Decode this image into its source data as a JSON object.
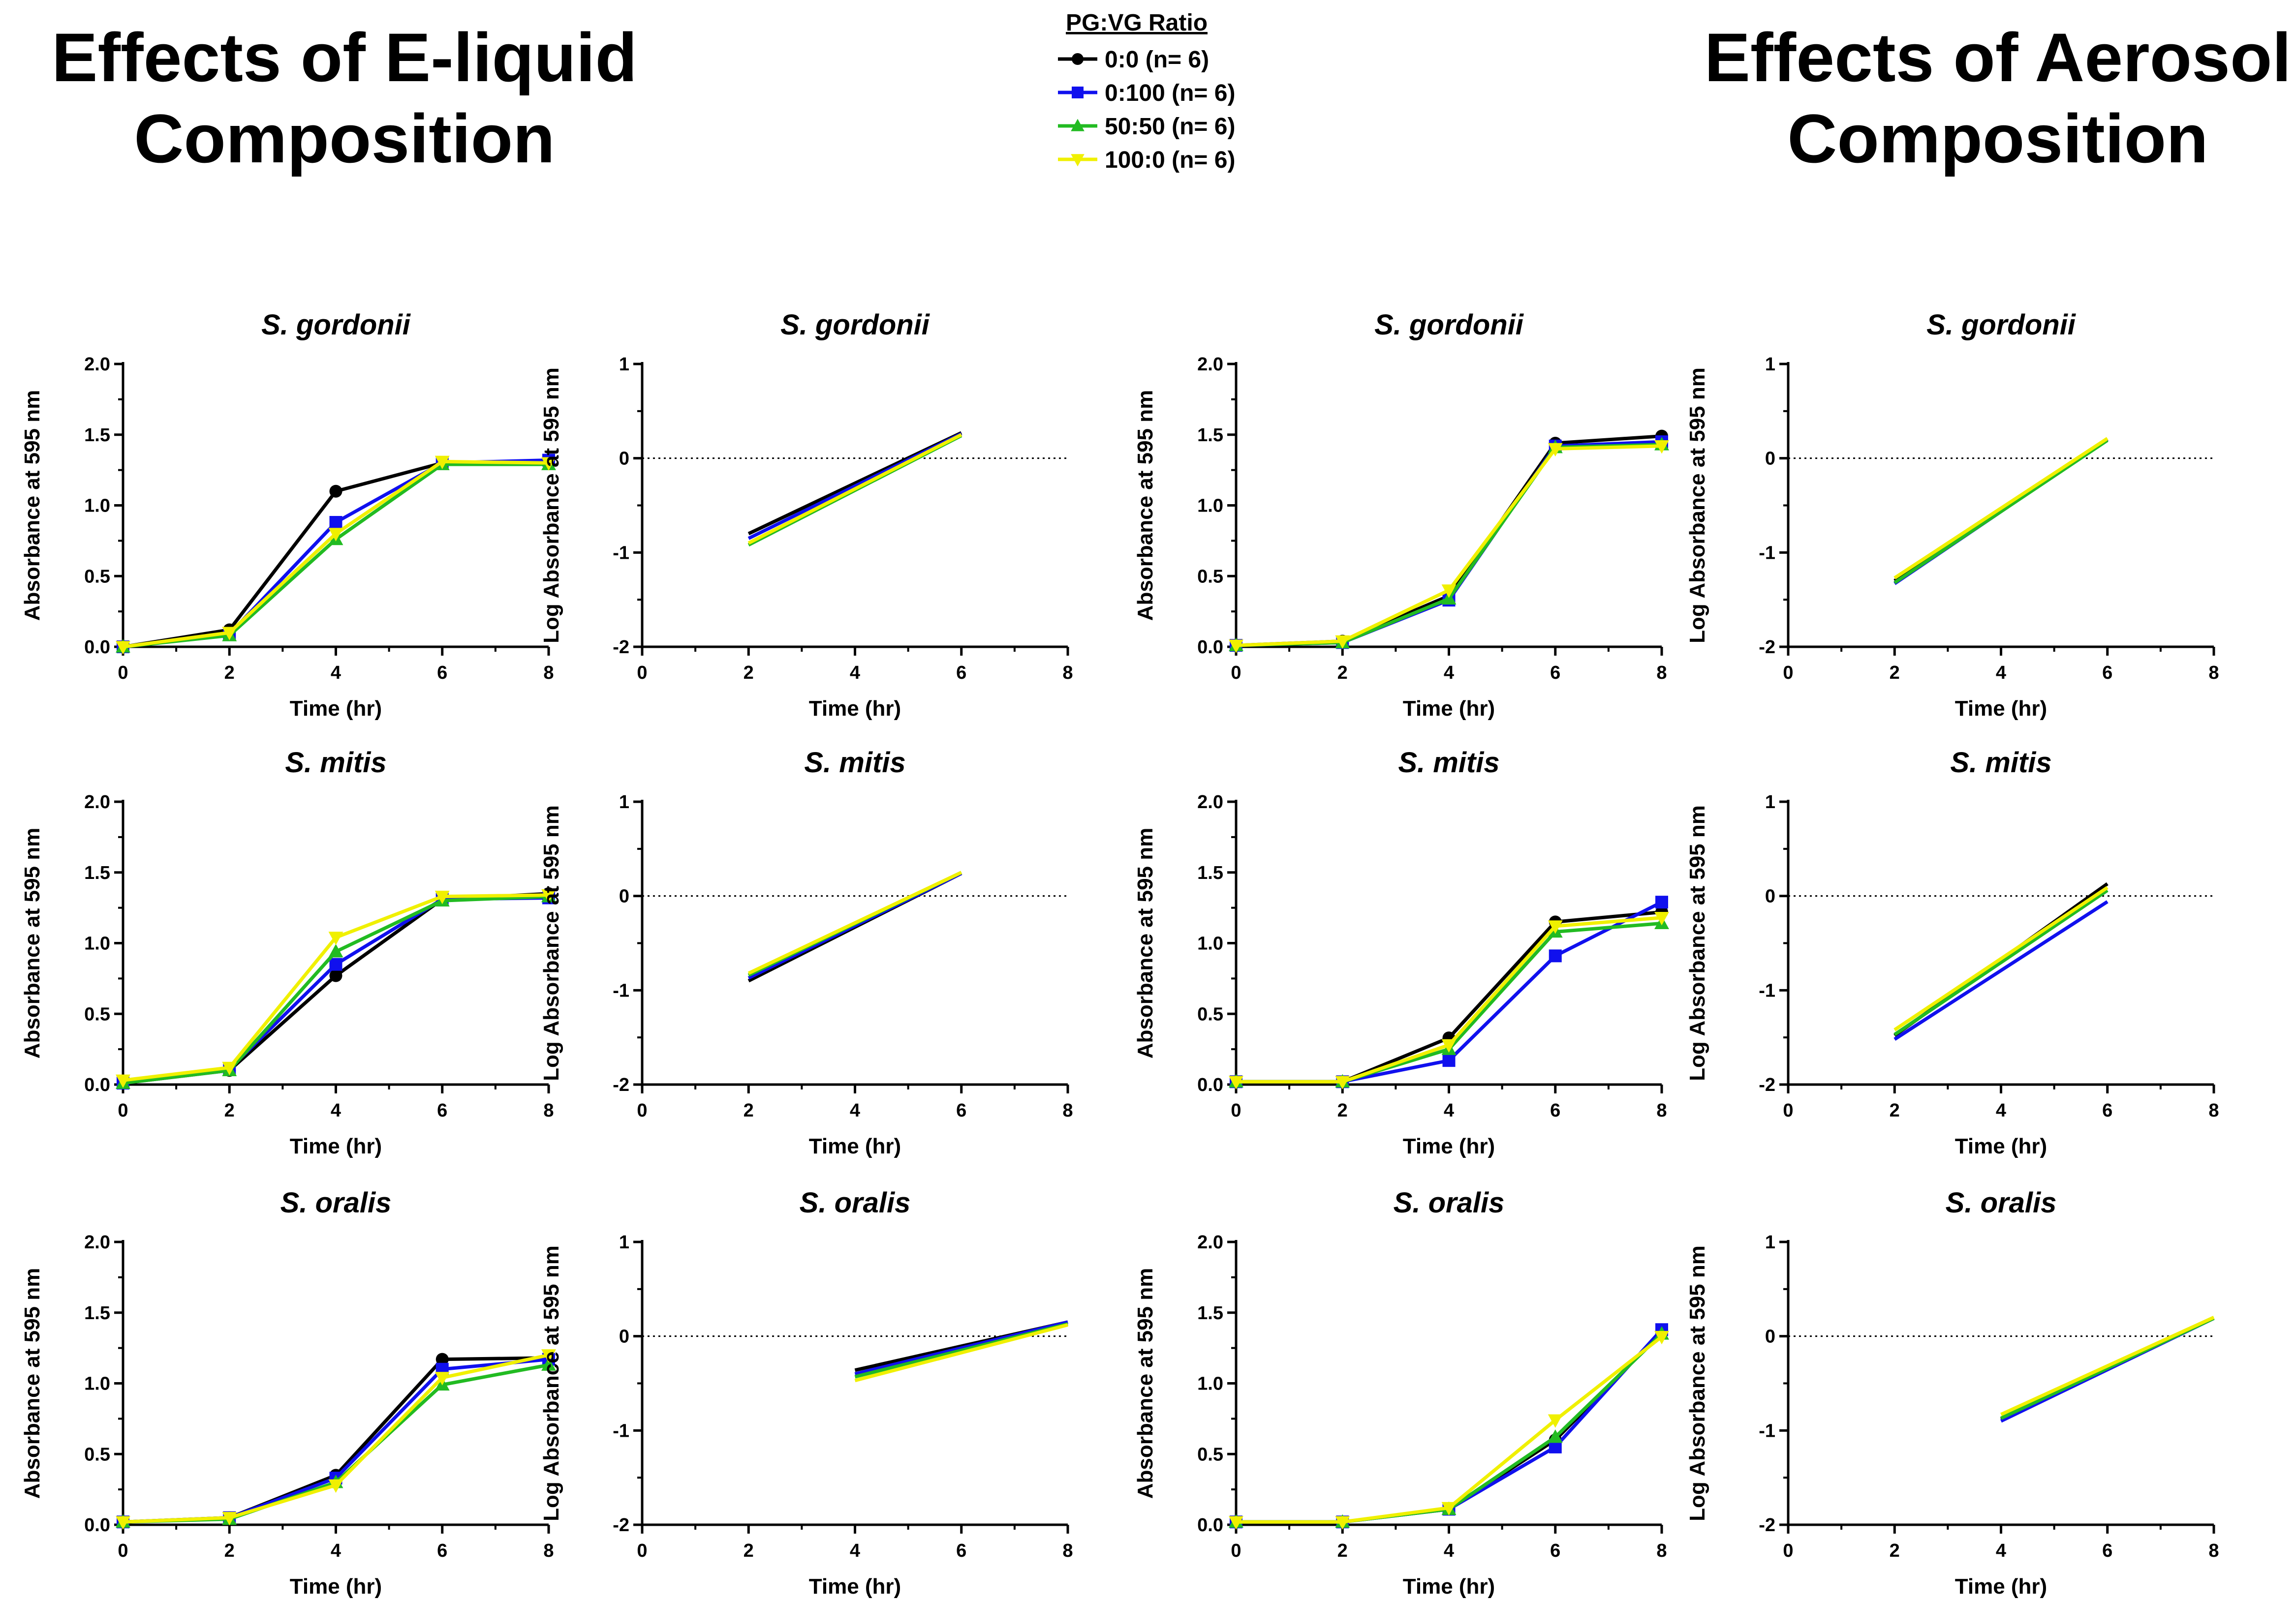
{
  "header": {
    "left_title": [
      "Effects of E-liquid",
      "Composition"
    ],
    "right_title": [
      "Effects of Aerosol",
      "Composition"
    ]
  },
  "legend": {
    "title": "PG:VG Ratio",
    "entries": [
      {
        "label": "0:0 (n= 6)",
        "color": "#000000",
        "marker": "circle"
      },
      {
        "label": "0:100 (n= 6)",
        "color": "#1010ee",
        "marker": "square"
      },
      {
        "label": "50:50 (n= 6)",
        "color": "#22bb22",
        "marker": "triangle-up"
      },
      {
        "label": "100:0 (n= 6)",
        "color": "#f0f000",
        "marker": "triangle-down"
      }
    ]
  },
  "chart_data": [
    {
      "type": "line",
      "group": "E-liquid",
      "title": "S. gordonii",
      "xlabel": "Time (hr)",
      "ylabel": "Absorbance at 595 nm",
      "xlim": [
        0,
        8
      ],
      "ylim": [
        0,
        2
      ],
      "xticks": [
        "0",
        "2",
        "4",
        "6",
        "8"
      ],
      "yticks": [
        "0.0",
        "0.5",
        "1.0",
        "1.5",
        "2.0"
      ],
      "x": [
        0,
        2,
        4,
        6,
        8
      ],
      "series": [
        {
          "name": "0:0 (n= 6)",
          "values": [
            0.0,
            0.12,
            1.1,
            1.3,
            1.3
          ]
        },
        {
          "name": "0:100 (n= 6)",
          "values": [
            0.0,
            0.09,
            0.88,
            1.3,
            1.32
          ]
        },
        {
          "name": "50:50 (n= 6)",
          "values": [
            0.0,
            0.08,
            0.76,
            1.29,
            1.29
          ]
        },
        {
          "name": "100:0 (n= 6)",
          "values": [
            0.0,
            0.1,
            0.8,
            1.31,
            1.3
          ]
        }
      ]
    },
    {
      "type": "line",
      "group": "E-liquid",
      "title": "S. gordonii",
      "xlabel": "Time (hr)",
      "ylabel": "Log Absorbance at 595 nm",
      "xlim": [
        0,
        8
      ],
      "ylim": [
        -2,
        1
      ],
      "xticks": [
        "0",
        "2",
        "4",
        "6",
        "8"
      ],
      "yticks": [
        "-2",
        "-1",
        "0",
        "1"
      ],
      "zero_line": true,
      "series": [
        {
          "name": "0:0 (n= 6)",
          "x": [
            2,
            6
          ],
          "values": [
            -0.8,
            0.27
          ]
        },
        {
          "name": "0:100 (n= 6)",
          "x": [
            2,
            6
          ],
          "values": [
            -0.85,
            0.26
          ]
        },
        {
          "name": "50:50 (n= 6)",
          "x": [
            2,
            6
          ],
          "values": [
            -0.92,
            0.24
          ]
        },
        {
          "name": "100:0 (n= 6)",
          "x": [
            2,
            6
          ],
          "values": [
            -0.9,
            0.25
          ]
        }
      ]
    },
    {
      "type": "line",
      "group": "Aerosol",
      "title": "S. gordonii",
      "xlabel": "Time (hr)",
      "ylabel": "Absorbance at 595 nm",
      "xlim": [
        0,
        8
      ],
      "ylim": [
        0,
        2
      ],
      "xticks": [
        "0",
        "2",
        "4",
        "6",
        "8"
      ],
      "yticks": [
        "0.0",
        "0.5",
        "1.0",
        "1.5",
        "2.0"
      ],
      "x": [
        0,
        2,
        4,
        6,
        8
      ],
      "series": [
        {
          "name": "0:0 (n= 6)",
          "values": [
            0.01,
            0.04,
            0.36,
            1.44,
            1.49
          ]
        },
        {
          "name": "0:100 (n= 6)",
          "values": [
            0.01,
            0.03,
            0.33,
            1.42,
            1.45
          ]
        },
        {
          "name": "50:50 (n= 6)",
          "values": [
            0.01,
            0.03,
            0.34,
            1.41,
            1.43
          ]
        },
        {
          "name": "100:0 (n= 6)",
          "values": [
            0.01,
            0.04,
            0.4,
            1.4,
            1.42
          ]
        }
      ]
    },
    {
      "type": "line",
      "group": "Aerosol",
      "title": "S. gordonii",
      "xlabel": "Time (hr)",
      "ylabel": "Log Absorbance at 595 nm",
      "xlim": [
        0,
        8
      ],
      "ylim": [
        -2,
        1
      ],
      "xticks": [
        "0",
        "2",
        "4",
        "6",
        "8"
      ],
      "yticks": [
        "-2",
        "-1",
        "0",
        "1"
      ],
      "zero_line": true,
      "series": [
        {
          "name": "0:0 (n= 6)",
          "x": [
            2,
            6
          ],
          "values": [
            -1.3,
            0.2
          ]
        },
        {
          "name": "0:100 (n= 6)",
          "x": [
            2,
            6
          ],
          "values": [
            -1.33,
            0.2
          ]
        },
        {
          "name": "50:50 (n= 6)",
          "x": [
            2,
            6
          ],
          "values": [
            -1.32,
            0.19
          ]
        },
        {
          "name": "100:0 (n= 6)",
          "x": [
            2,
            6
          ],
          "values": [
            -1.27,
            0.21
          ]
        }
      ]
    },
    {
      "type": "line",
      "group": "E-liquid",
      "title": "S. mitis",
      "xlabel": "Time (hr)",
      "ylabel": "Absorbance at 595 nm",
      "xlim": [
        0,
        8
      ],
      "ylim": [
        0,
        2
      ],
      "xticks": [
        "0",
        "2",
        "4",
        "6",
        "8"
      ],
      "yticks": [
        "0.0",
        "0.5",
        "1.0",
        "1.5",
        "2.0"
      ],
      "x": [
        0,
        2,
        4,
        6,
        8
      ],
      "series": [
        {
          "name": "0:0 (n= 6)",
          "values": [
            0.01,
            0.1,
            0.77,
            1.31,
            1.35
          ]
        },
        {
          "name": "0:100 (n= 6)",
          "values": [
            0.01,
            0.11,
            0.85,
            1.31,
            1.32
          ]
        },
        {
          "name": "50:50 (n= 6)",
          "values": [
            0.01,
            0.1,
            0.94,
            1.3,
            1.33
          ]
        },
        {
          "name": "100:0 (n= 6)",
          "values": [
            0.03,
            0.12,
            1.04,
            1.33,
            1.34
          ]
        }
      ]
    },
    {
      "type": "line",
      "group": "E-liquid",
      "title": "S. mitis",
      "xlabel": "Time (hr)",
      "ylabel": "Log Absorbance at 595 nm",
      "xlim": [
        0,
        8
      ],
      "ylim": [
        -2,
        1
      ],
      "xticks": [
        "0",
        "2",
        "4",
        "6",
        "8"
      ],
      "yticks": [
        "-2",
        "-1",
        "0",
        "1"
      ],
      "zero_line": true,
      "series": [
        {
          "name": "0:0 (n= 6)",
          "x": [
            2,
            6
          ],
          "values": [
            -0.9,
            0.24
          ]
        },
        {
          "name": "0:100 (n= 6)",
          "x": [
            2,
            6
          ],
          "values": [
            -0.87,
            0.24
          ]
        },
        {
          "name": "50:50 (n= 6)",
          "x": [
            2,
            6
          ],
          "values": [
            -0.84,
            0.25
          ]
        },
        {
          "name": "100:0 (n= 6)",
          "x": [
            2,
            6
          ],
          "values": [
            -0.82,
            0.25
          ]
        }
      ]
    },
    {
      "type": "line",
      "group": "Aerosol",
      "title": "S. mitis",
      "xlabel": "Time (hr)",
      "ylabel": "Absorbance at 595 nm",
      "xlim": [
        0,
        8
      ],
      "ylim": [
        0,
        2
      ],
      "xticks": [
        "0",
        "2",
        "4",
        "6",
        "8"
      ],
      "yticks": [
        "0.0",
        "0.5",
        "1.0",
        "1.5",
        "2.0"
      ],
      "x": [
        0,
        2,
        4,
        6,
        8
      ],
      "series": [
        {
          "name": "0:0 (n= 6)",
          "values": [
            0.02,
            0.02,
            0.33,
            1.15,
            1.22
          ]
        },
        {
          "name": "0:100 (n= 6)",
          "values": [
            0.02,
            0.02,
            0.17,
            0.91,
            1.29
          ]
        },
        {
          "name": "50:50 (n= 6)",
          "values": [
            0.02,
            0.02,
            0.25,
            1.08,
            1.14
          ]
        },
        {
          "name": "100:0 (n= 6)",
          "values": [
            0.02,
            0.02,
            0.28,
            1.12,
            1.18
          ]
        }
      ]
    },
    {
      "type": "line",
      "group": "Aerosol",
      "title": "S. mitis",
      "xlabel": "Time (hr)",
      "ylabel": "Log Absorbance at 595 nm",
      "xlim": [
        0,
        8
      ],
      "ylim": [
        -2,
        1
      ],
      "xticks": [
        "0",
        "2",
        "4",
        "6",
        "8"
      ],
      "yticks": [
        "-2",
        "-1",
        "0",
        "1"
      ],
      "zero_line": true,
      "series": [
        {
          "name": "0:0 (n= 6)",
          "x": [
            2,
            6
          ],
          "values": [
            -1.48,
            0.13
          ]
        },
        {
          "name": "0:100 (n= 6)",
          "x": [
            2,
            6
          ],
          "values": [
            -1.52,
            -0.06
          ]
        },
        {
          "name": "50:50 (n= 6)",
          "x": [
            2,
            6
          ],
          "values": [
            -1.47,
            0.06
          ]
        },
        {
          "name": "100:0 (n= 6)",
          "x": [
            2,
            6
          ],
          "values": [
            -1.42,
            0.09
          ]
        }
      ]
    },
    {
      "type": "line",
      "group": "E-liquid",
      "title": "S. oralis",
      "xlabel": "Time (hr)",
      "ylabel": "Absorbance at 595 nm",
      "xlim": [
        0,
        8
      ],
      "ylim": [
        0,
        2
      ],
      "xticks": [
        "0",
        "2",
        "4",
        "6",
        "8"
      ],
      "yticks": [
        "0.0",
        "0.5",
        "1.0",
        "1.5",
        "2.0"
      ],
      "x": [
        0,
        2,
        4,
        6,
        8
      ],
      "series": [
        {
          "name": "0:0 (n= 6)",
          "values": [
            0.02,
            0.05,
            0.35,
            1.17,
            1.18
          ]
        },
        {
          "name": "0:100 (n= 6)",
          "values": [
            0.02,
            0.05,
            0.33,
            1.1,
            1.17
          ]
        },
        {
          "name": "50:50 (n= 6)",
          "values": [
            0.02,
            0.04,
            0.3,
            0.99,
            1.13
          ]
        },
        {
          "name": "100:0 (n= 6)",
          "values": [
            0.02,
            0.05,
            0.28,
            1.04,
            1.2
          ]
        }
      ]
    },
    {
      "type": "line",
      "group": "E-liquid",
      "title": "S. oralis",
      "xlabel": "Time (hr)",
      "ylabel": "Log Absorbance at 595 nm",
      "xlim": [
        0,
        8
      ],
      "ylim": [
        -2,
        1
      ],
      "xticks": [
        "0",
        "2",
        "4",
        "6",
        "8"
      ],
      "yticks": [
        "-2",
        "-1",
        "0",
        "1"
      ],
      "zero_line": true,
      "series": [
        {
          "name": "0:0 (n= 6)",
          "x": [
            4,
            8
          ],
          "values": [
            -0.36,
            0.15
          ]
        },
        {
          "name": "0:100 (n= 6)",
          "x": [
            4,
            8
          ],
          "values": [
            -0.4,
            0.15
          ]
        },
        {
          "name": "50:50 (n= 6)",
          "x": [
            4,
            8
          ],
          "values": [
            -0.43,
            0.13
          ]
        },
        {
          "name": "100:0 (n= 6)",
          "x": [
            4,
            8
          ],
          "values": [
            -0.47,
            0.12
          ]
        }
      ]
    },
    {
      "type": "line",
      "group": "Aerosol",
      "title": "S. oralis",
      "xlabel": "Time (hr)",
      "ylabel": "Absorbance at 595 nm",
      "xlim": [
        0,
        8
      ],
      "ylim": [
        0,
        2
      ],
      "xticks": [
        "0",
        "2",
        "4",
        "6",
        "8"
      ],
      "yticks": [
        "0.0",
        "0.5",
        "1.0",
        "1.5",
        "2.0"
      ],
      "x": [
        0,
        2,
        4,
        6,
        8
      ],
      "series": [
        {
          "name": "0:0 (n= 6)",
          "values": [
            0.02,
            0.02,
            0.11,
            0.6,
            1.36
          ]
        },
        {
          "name": "0:100 (n= 6)",
          "values": [
            0.02,
            0.02,
            0.11,
            0.55,
            1.38
          ]
        },
        {
          "name": "50:50 (n= 6)",
          "values": [
            0.02,
            0.02,
            0.11,
            0.62,
            1.35
          ]
        },
        {
          "name": "100:0 (n= 6)",
          "values": [
            0.02,
            0.02,
            0.12,
            0.74,
            1.33
          ]
        }
      ]
    },
    {
      "type": "line",
      "group": "Aerosol",
      "title": "S. oralis",
      "xlabel": "Time (hr)",
      "ylabel": "Log Absorbance at 595 nm",
      "xlim": [
        0,
        8
      ],
      "ylim": [
        -2,
        1
      ],
      "xticks": [
        "0",
        "2",
        "4",
        "6",
        "8"
      ],
      "yticks": [
        "-2",
        "-1",
        "0",
        "1"
      ],
      "zero_line": true,
      "series": [
        {
          "name": "0:0 (n= 6)",
          "x": [
            4,
            8
          ],
          "values": [
            -0.88,
            0.19
          ]
        },
        {
          "name": "0:100 (n= 6)",
          "x": [
            4,
            8
          ],
          "values": [
            -0.9,
            0.19
          ]
        },
        {
          "name": "50:50 (n= 6)",
          "x": [
            4,
            8
          ],
          "values": [
            -0.87,
            0.19
          ]
        },
        {
          "name": "100:0 (n= 6)",
          "x": [
            4,
            8
          ],
          "values": [
            -0.83,
            0.2
          ]
        }
      ]
    }
  ]
}
